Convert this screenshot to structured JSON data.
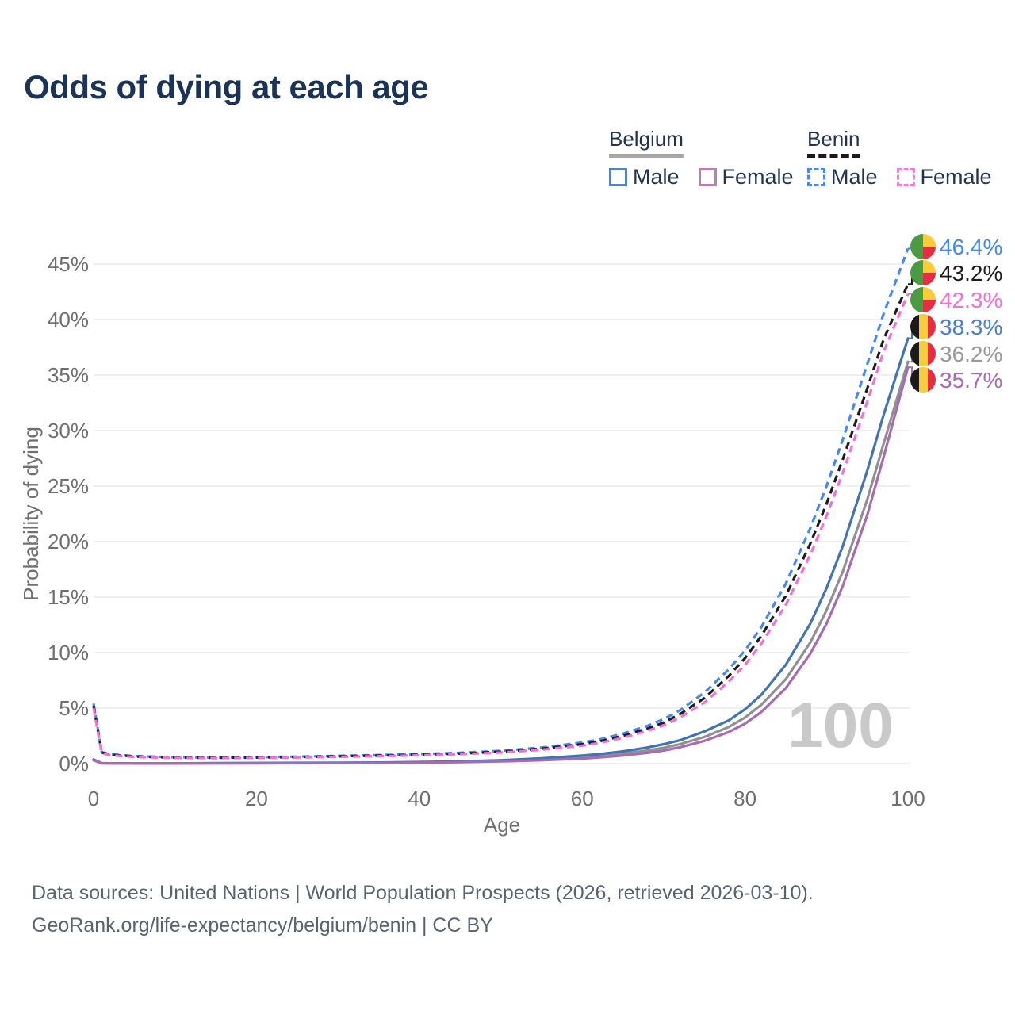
{
  "title": "Odds of dying at each age",
  "legend": {
    "groups": [
      {
        "label": "Belgium",
        "line_style": "solid",
        "underline_color": "#a8a8a8",
        "items": [
          {
            "label": "Male",
            "color": "#5b82b8"
          },
          {
            "label": "Female",
            "color": "#b77fb5"
          }
        ]
      },
      {
        "label": "Benin",
        "line_style": "dashed",
        "underline_color": "#1a1a1a",
        "items": [
          {
            "label": "Male",
            "color": "#4c86f0"
          },
          {
            "label": "Female",
            "color": "#fb79de"
          }
        ]
      }
    ]
  },
  "watermark": "100",
  "footer": {
    "line1": "Data sources: United Nations | World Population Prospects (2026, retrieved 2026-03-10).",
    "line2": "GeoRank.org/life-expectancy/belgium/benin | CC BY"
  },
  "chart_data": {
    "type": "line",
    "title": "Odds of dying at each age",
    "xlabel": "Age",
    "ylabel": "Probability of dying",
    "x_ticks": [
      0,
      20,
      40,
      60,
      80,
      100
    ],
    "y_ticks_percent": [
      0,
      5,
      10,
      15,
      20,
      25,
      30,
      35,
      40,
      45
    ],
    "xlim": [
      0,
      100
    ],
    "ylim_percent": [
      0,
      46.5
    ],
    "grid": true,
    "legend_position": "top-right",
    "ages": [
      0,
      1,
      2,
      5,
      10,
      15,
      20,
      25,
      30,
      35,
      40,
      45,
      50,
      55,
      60,
      62,
      65,
      68,
      70,
      72,
      75,
      78,
      80,
      82,
      85,
      88,
      90,
      92,
      95,
      97,
      100
    ],
    "series": [
      {
        "key": "belgium",
        "name": "Belgium",
        "country": "Belgium",
        "sex": "Both",
        "style": "solid",
        "color": "#909090",
        "flag": "belgium",
        "end_value": 36.2,
        "end_label": "36.2%",
        "label_color": "#9a9a9a",
        "values": [
          0.34,
          0.035,
          0.025,
          0.015,
          0.015,
          0.03,
          0.045,
          0.055,
          0.065,
          0.08,
          0.11,
          0.16,
          0.25,
          0.38,
          0.58,
          0.69,
          0.9,
          1.18,
          1.42,
          1.75,
          2.4,
          3.3,
          4.15,
          5.3,
          7.6,
          10.9,
          13.8,
          17.3,
          23.8,
          28.8,
          36.2
        ]
      },
      {
        "key": "belgium-male",
        "name": "Belgium Male",
        "country": "Belgium",
        "sex": "Male",
        "style": "solid",
        "color": "#4274b4",
        "flag": "belgium",
        "end_value": 38.3,
        "end_label": "38.3%",
        "label_color": "#4a7fd0",
        "values": [
          0.37,
          0.04,
          0.03,
          0.02,
          0.02,
          0.04,
          0.06,
          0.07,
          0.08,
          0.1,
          0.14,
          0.2,
          0.31,
          0.47,
          0.72,
          0.85,
          1.1,
          1.45,
          1.75,
          2.1,
          2.9,
          3.9,
          4.9,
          6.2,
          8.9,
          12.6,
          15.8,
          19.6,
          26.4,
          31.4,
          38.3
        ]
      },
      {
        "key": "belgium-female",
        "name": "Belgium Female",
        "country": "Belgium",
        "sex": "Female",
        "style": "solid",
        "color": "#a76bb2",
        "flag": "belgium",
        "end_value": 35.7,
        "end_label": "35.7%",
        "label_color": "#a76bb2",
        "values": [
          0.31,
          0.03,
          0.02,
          0.012,
          0.012,
          0.02,
          0.03,
          0.035,
          0.045,
          0.06,
          0.085,
          0.13,
          0.2,
          0.3,
          0.46,
          0.55,
          0.73,
          0.97,
          1.18,
          1.47,
          2.05,
          2.85,
          3.6,
          4.65,
          6.8,
          9.9,
          12.6,
          16.0,
          22.4,
          27.6,
          35.7
        ]
      },
      {
        "key": "benin-male",
        "name": "Benin Male",
        "country": "Benin",
        "sex": "Male",
        "style": "dashed",
        "color": "#4688f2",
        "flag": "benin",
        "end_value": 46.4,
        "end_label": "46.4%",
        "label_color": "#4688f2",
        "values": [
          5.4,
          1.05,
          0.85,
          0.68,
          0.57,
          0.55,
          0.58,
          0.63,
          0.7,
          0.77,
          0.86,
          0.98,
          1.15,
          1.45,
          1.9,
          2.15,
          2.7,
          3.4,
          4.0,
          4.8,
          6.4,
          8.5,
          10.2,
          12.3,
          16.2,
          21.2,
          25.0,
          29.2,
          36.0,
          40.5,
          46.4
        ]
      },
      {
        "key": "benin",
        "name": "Benin",
        "country": "Benin",
        "sex": "Both",
        "style": "dashed",
        "color": "#1c1c1c",
        "flag": "benin",
        "end_value": 43.2,
        "end_label": "43.2%",
        "label_color": "#1c1c1c",
        "values": [
          5.2,
          1.0,
          0.8,
          0.64,
          0.54,
          0.52,
          0.54,
          0.59,
          0.65,
          0.72,
          0.8,
          0.91,
          1.07,
          1.34,
          1.75,
          1.98,
          2.5,
          3.15,
          3.7,
          4.45,
          5.9,
          7.9,
          9.5,
          11.5,
          15.1,
          19.8,
          23.4,
          27.4,
          33.8,
          38.2,
          43.2
        ]
      },
      {
        "key": "benin-female",
        "name": "Benin Female",
        "country": "Benin",
        "sex": "Female",
        "style": "dashed",
        "color": "#f56fd9",
        "flag": "benin",
        "end_value": 42.3,
        "end_label": "42.3%",
        "label_color": "#f56fd9",
        "values": [
          5.0,
          0.95,
          0.76,
          0.6,
          0.51,
          0.49,
          0.51,
          0.55,
          0.61,
          0.67,
          0.75,
          0.85,
          1.0,
          1.25,
          1.62,
          1.84,
          2.32,
          2.95,
          3.45,
          4.15,
          5.5,
          7.4,
          8.9,
          10.8,
          14.3,
          18.8,
          22.3,
          26.2,
          32.6,
          37.1,
          42.3
        ]
      }
    ],
    "flag_colors": {
      "benin": {
        "green": "#4a9b41",
        "yellow": "#f7cd3c",
        "red": "#e42f42"
      },
      "belgium": {
        "black": "#1a1a1a",
        "yellow": "#f7cd3c",
        "red": "#e42f42"
      }
    }
  }
}
